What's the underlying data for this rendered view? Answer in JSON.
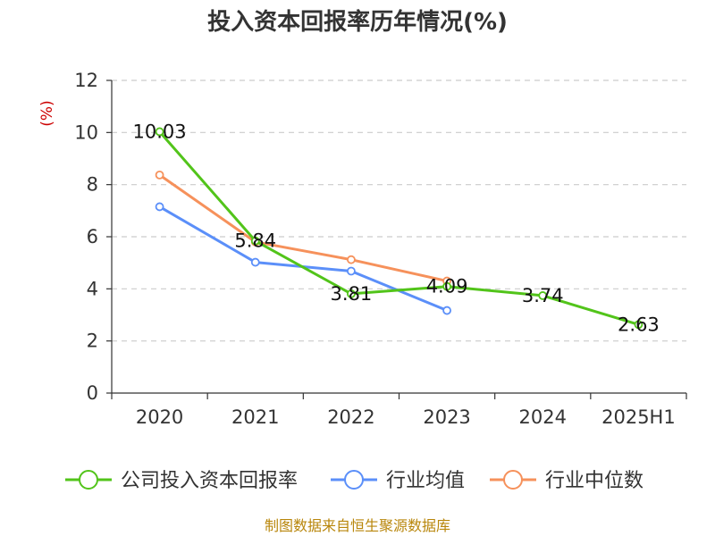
{
  "chart_data": {
    "type": "line",
    "title": "投入资本回报率历年情况(%)",
    "ylabel": "(%)",
    "xlabel": "",
    "categories": [
      "2020",
      "2021",
      "2022",
      "2023",
      "2024",
      "2025H1"
    ],
    "ylim": [
      0,
      12
    ],
    "yticks": [
      0,
      2,
      4,
      6,
      8,
      10,
      12
    ],
    "grid": true,
    "legend_position": "bottom",
    "series": [
      {
        "name": "公司投入资本回报率",
        "color": "#52c41a",
        "values": [
          10.03,
          5.84,
          3.81,
          4.09,
          3.74,
          2.63
        ],
        "labels": [
          "10.03",
          "5.84",
          "3.81",
          "4.09",
          "3.74",
          "2.63"
        ]
      },
      {
        "name": "行业均值",
        "color": "#5b8ff9",
        "values": [
          7.15,
          5.02,
          4.68,
          3.17,
          null,
          null
        ]
      },
      {
        "name": "行业中位数",
        "color": "#f6915b",
        "values": [
          8.37,
          5.8,
          5.12,
          4.3,
          null,
          null
        ]
      }
    ]
  },
  "source": "制图数据来自恒生聚源数据库"
}
